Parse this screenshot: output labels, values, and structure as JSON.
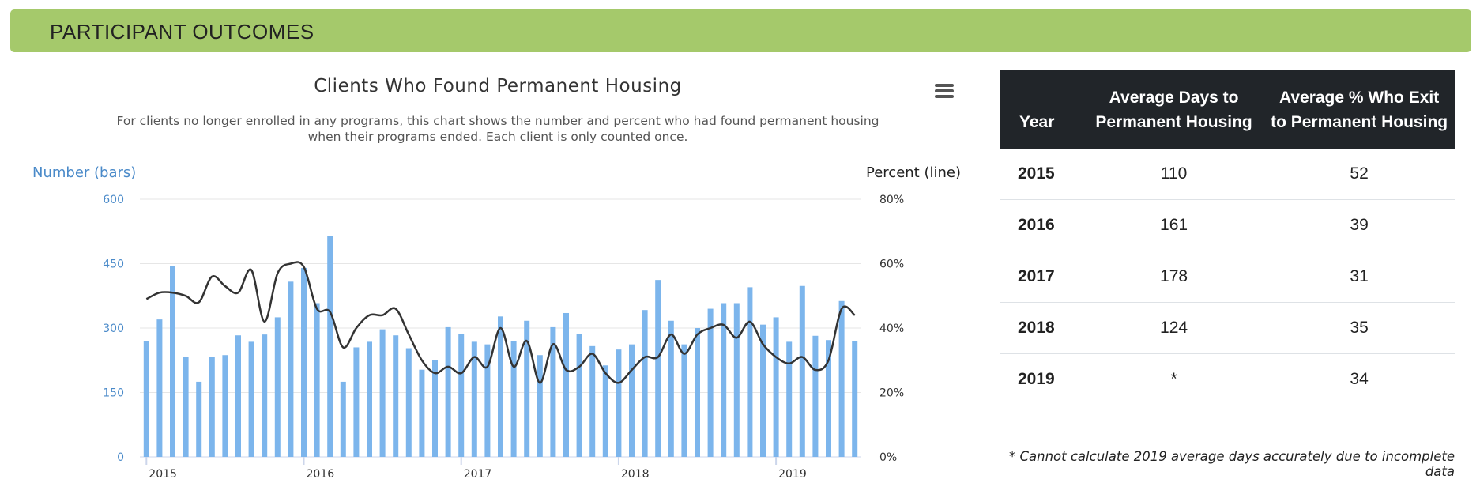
{
  "header": {
    "title": "PARTICIPANT OUTCOMES"
  },
  "menu": {
    "icon": "hamburger-menu-icon"
  },
  "chart_data": {
    "type": "bar+line",
    "title": "Clients Who Found Permanent Housing",
    "subtitle_line1": "For clients no longer enrolled in any programs, this chart shows the number and percent who had found permanent housing",
    "subtitle_line2": "when their programs ended. Each client is only counted once.",
    "left_axis_title": "Number (bars)",
    "right_axis_title": "Percent (line)",
    "left_ticks": [
      "0",
      "150",
      "300",
      "450",
      "600"
    ],
    "right_ticks": [
      "0%",
      "20%",
      "40%",
      "60%",
      "80%"
    ],
    "ylim_left": [
      0,
      600
    ],
    "ylim_right": [
      0,
      80
    ],
    "x_labels": [
      "2015",
      "2016",
      "2017",
      "2018",
      "2019"
    ],
    "grid": true,
    "bar_color": "#7cb5ec",
    "line_color": "#333333",
    "bars": [
      270,
      320,
      445,
      232,
      175,
      232,
      237,
      283,
      268,
      285,
      325,
      408,
      440,
      358,
      515,
      175,
      255,
      268,
      297,
      283,
      253,
      203,
      225,
      302,
      287,
      268,
      262,
      327,
      270,
      317,
      237,
      302,
      335,
      287,
      258,
      213,
      250,
      262,
      342,
      412,
      317,
      262,
      300,
      345,
      358,
      358,
      395,
      308,
      325,
      268,
      398,
      282,
      272,
      363,
      270
    ],
    "line": [
      49,
      51,
      51,
      50,
      48,
      56,
      53,
      51,
      58,
      42,
      57,
      60,
      59,
      46,
      45,
      34,
      40,
      44,
      44,
      46,
      38,
      30,
      26,
      28,
      26,
      31,
      28,
      40,
      28,
      36,
      23,
      35,
      27,
      28,
      32,
      26,
      23,
      27,
      31,
      31,
      38,
      32,
      38,
      40,
      41,
      37,
      42,
      35,
      31,
      29,
      31,
      27,
      30,
      46,
      44
    ]
  },
  "table": {
    "headers": [
      "Year",
      "Average Days to Permanent Housing",
      "Average % Who Exit to Permanent Housing"
    ],
    "rows": [
      {
        "year": "2015",
        "days": "110",
        "pct": "52"
      },
      {
        "year": "2016",
        "days": "161",
        "pct": "39"
      },
      {
        "year": "2017",
        "days": "178",
        "pct": "31"
      },
      {
        "year": "2018",
        "days": "124",
        "pct": "35"
      },
      {
        "year": "2019",
        "days": "*",
        "pct": "34"
      }
    ]
  },
  "footnote": "* Cannot calculate 2019 average days accurately due to incomplete data"
}
